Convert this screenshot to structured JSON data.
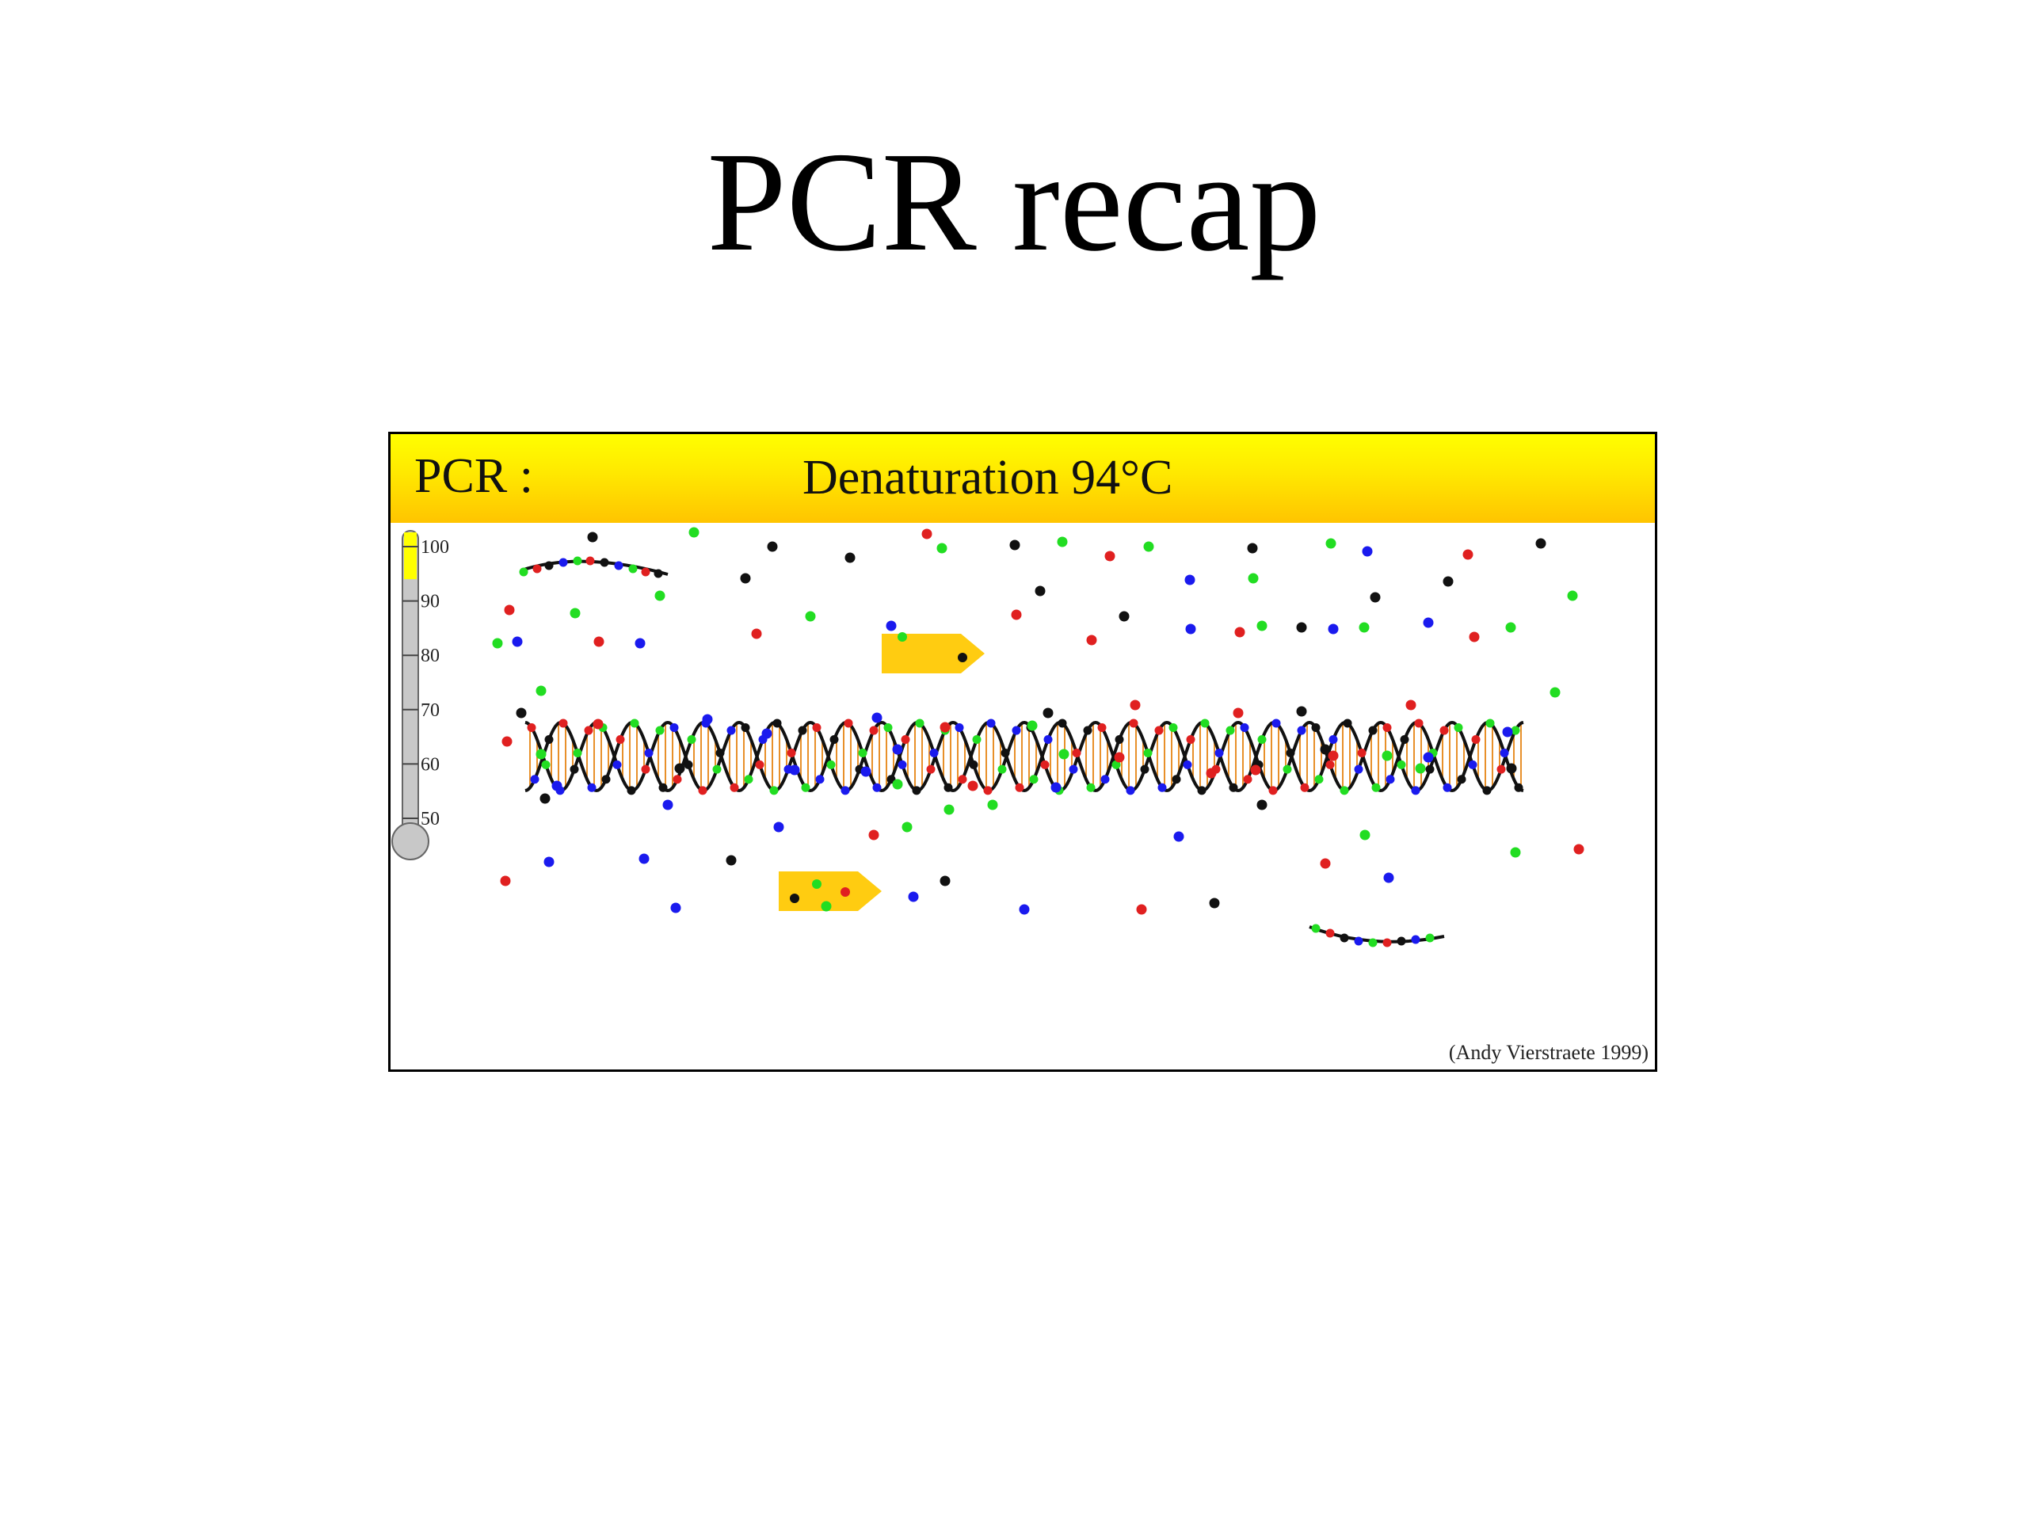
{
  "slide": {
    "title": "PCR recap"
  },
  "panel": {
    "prefix": "PCR :",
    "step": "Denaturation 94°C",
    "credit": "(Andy Vierstraete 1999)"
  },
  "thermometer": {
    "ticks": [
      "100",
      "90",
      "80",
      "70",
      "60",
      "50"
    ],
    "level_celsius": 94,
    "level_color": "#ffff00",
    "tube_color": "#c8c8c8"
  },
  "colors": {
    "nucleotides": {
      "red": "#e02020",
      "green": "#22dd22",
      "blue": "#1a1aee",
      "black": "#111111"
    },
    "primer": "#ffcc11",
    "rungs": "#e8902a",
    "header_top": "#ffff00",
    "header_bottom": "#ffc400"
  }
}
